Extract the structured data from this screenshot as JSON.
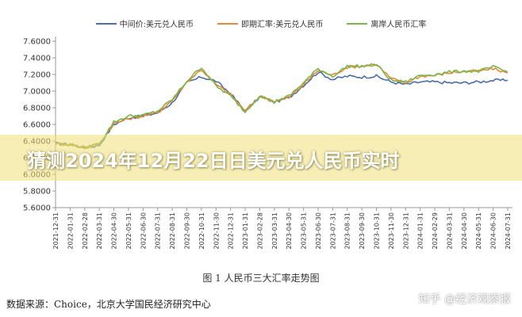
{
  "banner": {
    "title": "猜测2024年12月22日日美元兑人民币实时"
  },
  "caption": "图 1 人民币三大汇率走势图",
  "source": "数据来源：Choice，北京大学国民经济研究中心",
  "watermark": "知乎 @经济观察报",
  "colors": {
    "mid": "#4a6ea8",
    "spot": "#e8883a",
    "offshore": "#7ab648",
    "axis": "#999999"
  },
  "chart_data": {
    "type": "line",
    "title": "",
    "xlabel": "",
    "ylabel": "",
    "ylim": [
      5.6,
      7.6
    ],
    "y_ticks": [
      "5.6000",
      "5.8000",
      "6.0000",
      "6.2000",
      "6.4000",
      "6.6000",
      "6.8000",
      "7.0000",
      "7.2000",
      "7.4000",
      "7.6000"
    ],
    "x_ticks": [
      "2021-12-31",
      "2022-01-31",
      "2022-02-28",
      "2022-03-31",
      "2022-04-30",
      "2022-05-31",
      "2022-06-30",
      "2022-07-31",
      "2022-08-31",
      "2022-09-30",
      "2022-10-31",
      "2022-11-30",
      "2022-12-31",
      "2023-01-31",
      "2023-02-28",
      "2023-03-31",
      "2023-04-30",
      "2023-05-31",
      "2023-06-30",
      "2023-07-31",
      "2023-08-31",
      "2023-09-30",
      "2023-10-31",
      "2023-11-30",
      "2023-12-31",
      "2024-01-31",
      "2024-02-29",
      "2024-03-31",
      "2024-04-30",
      "2024-05-31",
      "2024-06-30",
      "2024-07-31"
    ],
    "legend_position": "top",
    "series": [
      {
        "name": "中间价:美元兑人民币",
        "key": "mid",
        "values": [
          6.37,
          6.36,
          6.32,
          6.35,
          6.6,
          6.68,
          6.7,
          6.74,
          6.86,
          7.1,
          7.17,
          7.12,
          6.97,
          6.76,
          6.93,
          6.87,
          6.92,
          7.07,
          7.23,
          7.14,
          7.18,
          7.17,
          7.18,
          7.11,
          7.08,
          7.11,
          7.11,
          7.1,
          7.1,
          7.11,
          7.13,
          7.13
        ]
      },
      {
        "name": "即期汇率:美元兑人民币",
        "key": "spot",
        "values": [
          6.37,
          6.36,
          6.32,
          6.37,
          6.61,
          6.67,
          6.7,
          6.74,
          6.89,
          7.11,
          7.26,
          7.08,
          6.96,
          6.76,
          6.94,
          6.88,
          6.92,
          7.08,
          7.25,
          7.19,
          7.29,
          7.3,
          7.32,
          7.15,
          7.1,
          7.18,
          7.19,
          7.22,
          7.24,
          7.24,
          7.27,
          7.22
        ]
      },
      {
        "name": "离岸人民币汇率",
        "key": "offshore",
        "values": [
          6.37,
          6.36,
          6.32,
          6.37,
          6.63,
          6.7,
          6.71,
          6.76,
          6.9,
          7.12,
          7.29,
          7.06,
          6.94,
          6.75,
          6.95,
          6.87,
          6.94,
          7.1,
          7.27,
          7.18,
          7.3,
          7.3,
          7.32,
          7.13,
          7.11,
          7.19,
          7.2,
          7.23,
          7.24,
          7.24,
          7.29,
          7.23
        ]
      }
    ]
  }
}
